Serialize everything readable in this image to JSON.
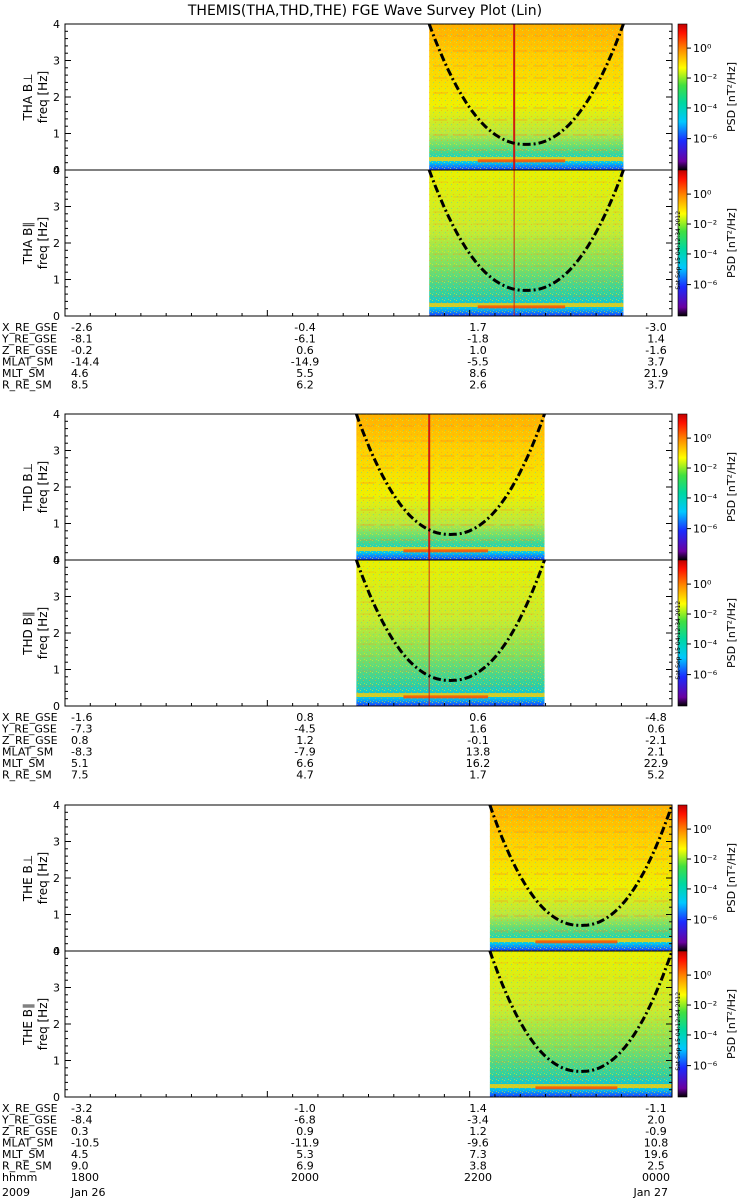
{
  "title": "THEMIS(THA,THD,THE) FGE Wave Survey Plot (Lin)",
  "colorbar": {
    "label": "PSD [nT²/Hz]",
    "ticks": [
      "10⁰",
      "10⁻²",
      "10⁻⁴",
      "10⁻⁶"
    ],
    "stamp": "Sat Sep 15 04:12:34 2012"
  },
  "chart_data": {
    "type": "heatmap",
    "x_range": [
      "1800",
      "0000"
    ],
    "ylim": [
      0,
      4
    ],
    "yticks": [
      "0",
      "1",
      "2",
      "3",
      "4"
    ],
    "panels": [
      {
        "probe": "THA",
        "component": "B⊥",
        "ylabel": "freq [Hz]",
        "data_start_frac": 0.6,
        "data_end_frac": 0.92,
        "spike_frac": 0.74
      },
      {
        "probe": "THA",
        "component": "B∥",
        "ylabel": "freq [Hz]",
        "data_start_frac": 0.6,
        "data_end_frac": 0.92,
        "spike_frac": 0.74
      },
      {
        "probe": "THD",
        "component": "B⊥",
        "ylabel": "freq [Hz]",
        "data_start_frac": 0.48,
        "data_end_frac": 0.79,
        "spike_frac": 0.6
      },
      {
        "probe": "THD",
        "component": "B∥",
        "ylabel": "freq [Hz]",
        "data_start_frac": 0.48,
        "data_end_frac": 0.79,
        "spike_frac": 0.6
      },
      {
        "probe": "THE",
        "component": "B⊥",
        "ylabel": "freq [Hz]",
        "data_start_frac": 0.7,
        "data_end_frac": 1.0,
        "spike_frac": null
      },
      {
        "probe": "THE",
        "component": "B∥",
        "ylabel": "freq [Hz]",
        "data_start_frac": 0.7,
        "data_end_frac": 1.0,
        "spike_frac": null
      }
    ]
  },
  "ephemeris": [
    {
      "rows": [
        {
          "label": "X_RE_GSE",
          "values": [
            "-2.6",
            "-0.4",
            "1.7",
            "-3.0"
          ]
        },
        {
          "label": "Y_RE_GSE",
          "values": [
            "-8.1",
            "-6.1",
            "-1.8",
            "1.4"
          ]
        },
        {
          "label": "Z_RE_GSE",
          "values": [
            "-0.2",
            "0.6",
            "1.0",
            "-1.6"
          ]
        },
        {
          "label": "MLAT_SM",
          "values": [
            "-14.4",
            "-14.9",
            "-5.5",
            "3.7"
          ]
        },
        {
          "label": "MLT_SM",
          "values": [
            "4.6",
            "5.5",
            "8.6",
            "21.9"
          ]
        },
        {
          "label": "R_RE_SM",
          "values": [
            "8.5",
            "6.2",
            "2.6",
            "3.7"
          ]
        }
      ]
    },
    {
      "rows": [
        {
          "label": "X_RE_GSE",
          "values": [
            "-1.6",
            "0.8",
            "0.6",
            "-4.8"
          ]
        },
        {
          "label": "Y_RE_GSE",
          "values": [
            "-7.3",
            "-4.5",
            "1.6",
            "0.6"
          ]
        },
        {
          "label": "Z_RE_GSE",
          "values": [
            "0.8",
            "1.2",
            "-0.1",
            "-2.1"
          ]
        },
        {
          "label": "MLAT_SM",
          "values": [
            "-8.3",
            "-7.9",
            "13.8",
            "2.1"
          ]
        },
        {
          "label": "MLT_SM",
          "values": [
            "5.1",
            "6.6",
            "16.2",
            "22.9"
          ]
        },
        {
          "label": "R_RE_SM",
          "values": [
            "7.5",
            "4.7",
            "1.7",
            "5.2"
          ]
        }
      ]
    },
    {
      "rows": [
        {
          "label": "X_RE_GSE",
          "values": [
            "-3.2",
            "-1.0",
            "1.4",
            "-1.1"
          ]
        },
        {
          "label": "Y_RE_GSE",
          "values": [
            "-8.4",
            "-6.8",
            "-3.4",
            "2.0"
          ]
        },
        {
          "label": "Z_RE_GSE",
          "values": [
            "0.3",
            "0.9",
            "1.2",
            "-0.9"
          ]
        },
        {
          "label": "MLAT_SM",
          "values": [
            "-10.5",
            "-11.9",
            "-9.6",
            "10.8"
          ]
        },
        {
          "label": "MLT_SM",
          "values": [
            "4.5",
            "5.3",
            "7.3",
            "19.6"
          ]
        },
        {
          "label": "R_RE_SM",
          "values": [
            "9.0",
            "6.9",
            "3.8",
            "2.5"
          ]
        },
        {
          "label": "hhmm",
          "values": [
            "1800",
            "2000",
            "2200",
            "0000"
          ]
        }
      ]
    }
  ],
  "date_row": {
    "year": "2009",
    "start": "Jan 26",
    "end": "Jan 27"
  }
}
